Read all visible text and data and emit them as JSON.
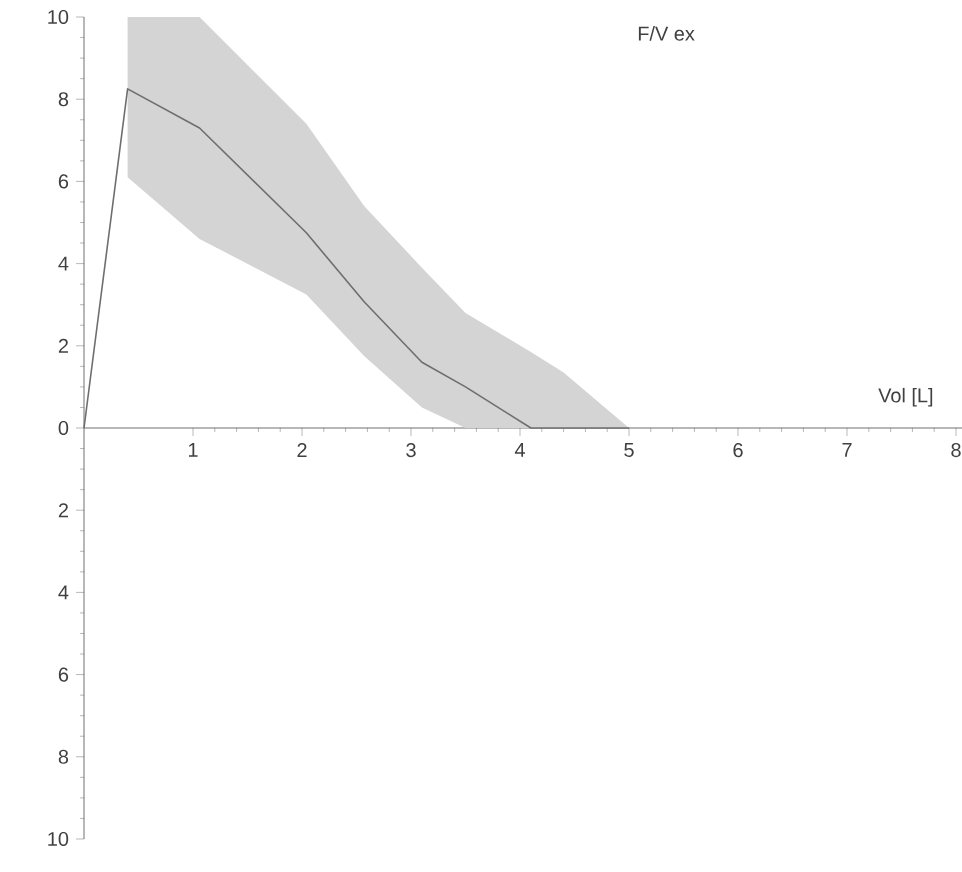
{
  "chart_data": {
    "type": "line",
    "title": "F/V ex",
    "xlabel": "Vol [L]",
    "xlim": [
      0,
      8.2
    ],
    "ylim": [
      -10,
      10
    ],
    "xticks": [
      1,
      2,
      3,
      4,
      5,
      6,
      7,
      8
    ],
    "yticks": [
      {
        "value": -10,
        "label": "10"
      },
      {
        "value": -8,
        "label": "8"
      },
      {
        "value": -6,
        "label": "6"
      },
      {
        "value": -4,
        "label": "4"
      },
      {
        "value": -2,
        "label": "2"
      },
      0,
      2,
      4,
      6,
      8,
      10
    ],
    "grid": false,
    "series": [
      {
        "color": "#6e6e6e",
        "x": [
          0,
          0.4,
          1.06,
          2.04,
          2.57,
          3.1,
          3.5,
          4.1,
          4.4,
          5.0
        ],
        "values": [
          0,
          8.25,
          7.3,
          4.75,
          3.07,
          1.6,
          1.0,
          0,
          0,
          0
        ],
        "upper": [
          null,
          10,
          10,
          7.4,
          5.4,
          3.9,
          2.8,
          1.85,
          1.35,
          0
        ],
        "lower": [
          null,
          6.1,
          4.6,
          3.25,
          1.75,
          0.5,
          0,
          0,
          0,
          0
        ]
      }
    ]
  }
}
